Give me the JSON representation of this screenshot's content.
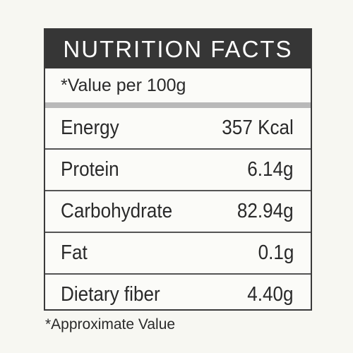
{
  "header": {
    "title": "NUTRITION FACTS",
    "subtitle": "*Value per 100g"
  },
  "table": {
    "rows": [
      [
        "Energy",
        "357 Kcal"
      ],
      [
        "Protein",
        "6.14g"
      ],
      [
        "Carbohydrate",
        "82.94g"
      ],
      [
        "Fat",
        "0.1g"
      ],
      [
        "Dietary fiber",
        "4.40g"
      ]
    ]
  },
  "footnote": "*Approximate Value"
}
